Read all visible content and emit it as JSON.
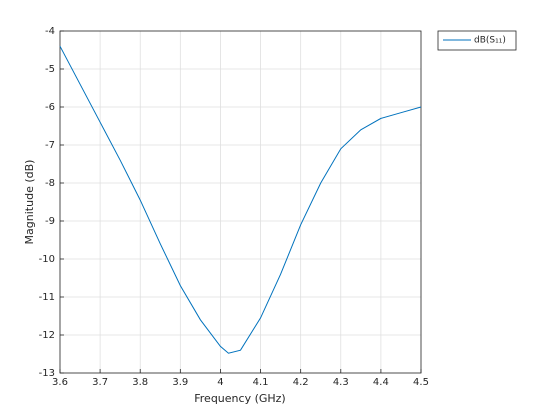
{
  "chart_data": {
    "type": "line",
    "x_label": "Frequency (GHz)",
    "y_label": "Magnitude (dB)",
    "x": [
      3.6,
      3.65,
      3.7,
      3.75,
      3.8,
      3.85,
      3.9,
      3.95,
      4.0,
      4.02,
      4.05,
      4.1,
      4.15,
      4.2,
      4.25,
      4.3,
      4.35,
      4.4,
      4.45,
      4.5
    ],
    "series": [
      {
        "name": "dB(S₁₁)",
        "color": "#0072bd",
        "values": [
          -4.4,
          -5.4,
          -6.4,
          -7.4,
          -8.45,
          -9.6,
          -10.7,
          -11.6,
          -12.3,
          -12.48,
          -12.4,
          -11.55,
          -10.4,
          -9.1,
          -8.0,
          -7.1,
          -6.6,
          -6.3,
          -6.15,
          -6.0
        ]
      }
    ],
    "xlim": [
      3.6,
      4.5
    ],
    "ylim": [
      -13,
      -4
    ],
    "xticks": [
      3.6,
      3.7,
      3.8,
      3.9,
      4,
      4.1,
      4.2,
      4.3,
      4.4,
      4.5
    ],
    "yticks": [
      -13,
      -12,
      -11,
      -10,
      -9,
      -8,
      -7,
      -6,
      -5,
      -4
    ],
    "grid": true
  }
}
